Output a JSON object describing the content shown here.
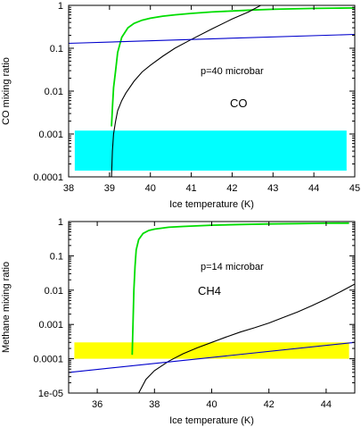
{
  "chart_data": [
    {
      "type": "line",
      "xlabel": "Ice temperature (K)",
      "ylabel": "CO mixing ratio",
      "annotations": [
        "p=40 microbar",
        "CO"
      ],
      "xlim": [
        38,
        45
      ],
      "ylim": [
        0.0001,
        1
      ],
      "yscale": "log",
      "xticks": [
        38,
        39,
        40,
        41,
        42,
        43,
        44,
        45
      ],
      "yticks": [
        0.0001,
        0.001,
        0.01,
        0.1,
        1
      ],
      "ytick_labels": [
        "0.0001",
        "0.001",
        "0.01",
        "0.1",
        "1"
      ],
      "grid": false,
      "band": {
        "color": "#00ffff",
        "x": [
          38.15,
          44.8
        ],
        "y": [
          0.00014,
          0.0012
        ]
      },
      "series": [
        {
          "color": "#00dd00",
          "x": [
            39.05,
            39.07,
            39.1,
            39.15,
            39.2,
            39.3,
            39.45,
            39.6,
            39.8,
            40.0,
            40.3,
            40.6,
            41.0,
            41.5,
            42.0,
            42.5,
            43.0,
            43.5,
            44.0,
            44.5,
            45.0
          ],
          "y": [
            0.0015,
            0.004,
            0.012,
            0.03,
            0.08,
            0.18,
            0.3,
            0.38,
            0.45,
            0.5,
            0.56,
            0.6,
            0.65,
            0.7,
            0.74,
            0.78,
            0.81,
            0.83,
            0.85,
            0.86,
            0.87
          ]
        },
        {
          "color": "#000000",
          "x": [
            39.05,
            39.07,
            39.1,
            39.15,
            39.2,
            39.3,
            39.4,
            39.6,
            39.8,
            40.0,
            40.3,
            40.6,
            41.0,
            41.5,
            42.0,
            42.4,
            42.7
          ],
          "y": [
            0.0001,
            0.0004,
            0.001,
            0.002,
            0.0035,
            0.006,
            0.009,
            0.017,
            0.028,
            0.04,
            0.065,
            0.1,
            0.16,
            0.28,
            0.48,
            0.7,
            1.0
          ]
        },
        {
          "color": "#0000cc",
          "x": [
            38,
            45
          ],
          "y": [
            0.13,
            0.21
          ]
        }
      ]
    },
    {
      "type": "line",
      "xlabel": "Ice temperature (K)",
      "ylabel": "Methane mixing ratio",
      "annotations": [
        "p=14 microbar",
        "CH4"
      ],
      "xlim": [
        35,
        45
      ],
      "ylim": [
        1e-05,
        1
      ],
      "yscale": "log",
      "xticks": [
        36,
        38,
        40,
        42,
        44
      ],
      "yticks": [
        1e-05,
        0.0001,
        0.001,
        0.01,
        0.1,
        1
      ],
      "ytick_labels": [
        "1e-05",
        "0.0001",
        "0.001",
        "0.01",
        "0.1",
        "1"
      ],
      "grid": false,
      "band": {
        "color": "#ffff00",
        "x": [
          35.2,
          44.8
        ],
        "y": [
          0.0001,
          0.0003
        ]
      },
      "series": [
        {
          "color": "#00dd00",
          "x": [
            37.22,
            37.25,
            37.28,
            37.32,
            37.36,
            37.45,
            37.6,
            37.8,
            38.0,
            38.5,
            39.0,
            40.0,
            41.0,
            42.0,
            43.0,
            44.0,
            44.8
          ],
          "y": [
            0.00013,
            0.001,
            0.01,
            0.05,
            0.15,
            0.3,
            0.45,
            0.55,
            0.6,
            0.68,
            0.72,
            0.78,
            0.82,
            0.85,
            0.87,
            0.89,
            0.9
          ]
        },
        {
          "color": "#000000",
          "x": [
            37.45,
            37.7,
            38.0,
            38.5,
            39.0,
            39.5,
            40.0,
            40.5,
            41.0,
            41.5,
            42.0,
            42.5,
            43.0,
            43.5,
            44.0,
            44.5,
            45.0
          ],
          "y": [
            1e-05,
            2.5e-05,
            4.5e-05,
            8.5e-05,
            0.00014,
            0.00021,
            0.0003,
            0.00043,
            0.0006,
            0.0008,
            0.0011,
            0.0016,
            0.0023,
            0.0035,
            0.0055,
            0.009,
            0.015
          ]
        },
        {
          "color": "#0000cc",
          "x": [
            35,
            45
          ],
          "y": [
            4e-05,
            0.0003
          ]
        }
      ]
    }
  ]
}
